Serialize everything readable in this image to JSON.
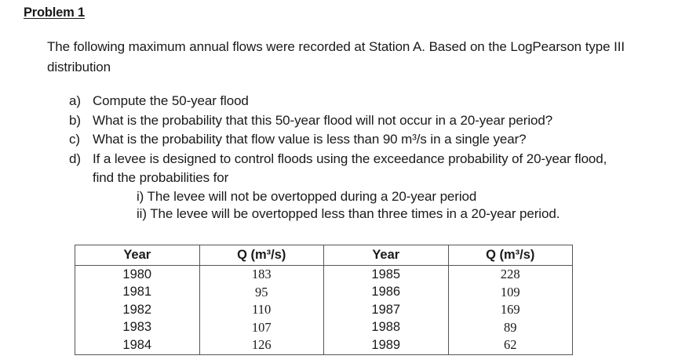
{
  "problem": {
    "title": "Problem 1",
    "intro": "The following maximum annual flows were recorded at Station A. Based on the LogPearson type III distribution",
    "questions": [
      {
        "letter": "a)",
        "text": "Compute the 50-year flood"
      },
      {
        "letter": "b)",
        "text": "What is the probability that this 50-year flood will not occur in a 20-year period?"
      },
      {
        "letter": "c)",
        "text": "What is the probability that flow value is less than 90 m³/s in a single year?"
      },
      {
        "letter": "d)",
        "text": "If a levee is designed to control floods using the exceedance probability of 20-year flood, find the probabilities for"
      }
    ],
    "sub_questions": [
      "i) The levee will not be overtopped during a 20-year period",
      "ii) The levee will be overtopped less than three times in a 20-year period."
    ]
  },
  "table": {
    "headers": [
      "Year",
      "Q (m³/s)",
      "Year",
      "Q (m³/s)"
    ],
    "rows": [
      [
        "1980",
        "183",
        "1985",
        "228"
      ],
      [
        "1981",
        "95",
        "1986",
        "109"
      ],
      [
        "1982",
        "110",
        "1987",
        "169"
      ],
      [
        "1983",
        "107",
        "1988",
        "89"
      ],
      [
        "1984",
        "126",
        "1989",
        "62"
      ]
    ]
  }
}
